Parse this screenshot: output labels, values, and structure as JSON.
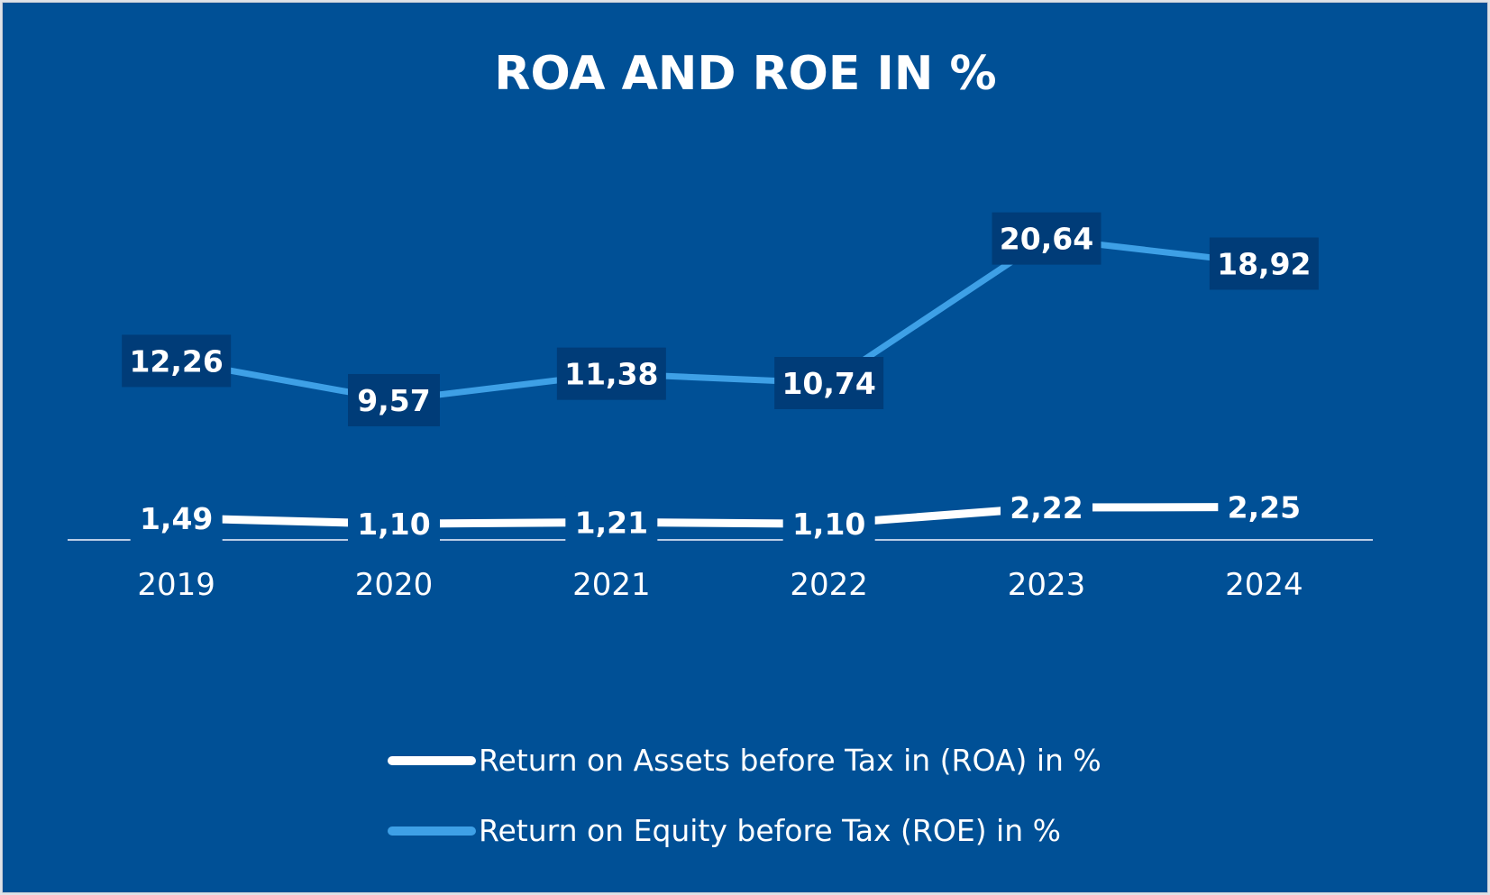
{
  "colors": {
    "background": "#005096",
    "axis": "#b9cde6",
    "roa_line": "#ffffff",
    "roe_line": "#3ea0e6",
    "label_box": "#003c78"
  },
  "chart_data": {
    "type": "line",
    "title": "ROA AND ROE IN %",
    "categories": [
      "2019",
      "2020",
      "2021",
      "2022",
      "2023",
      "2024"
    ],
    "series": [
      {
        "name": "Return on Assets before Tax in (ROA) in %",
        "values": [
          1.49,
          1.1,
          1.21,
          1.1,
          2.22,
          2.25
        ],
        "labels": [
          "1,49",
          "1,10",
          "1,21",
          "1,10",
          "2,22",
          "2,25"
        ]
      },
      {
        "name": "Return on Equity before Tax (ROE) in %",
        "values": [
          12.26,
          9.57,
          11.38,
          10.74,
          20.64,
          18.92
        ],
        "labels": [
          "12,26",
          "9,57",
          "11,38",
          "10,74",
          "20,64",
          "18,92"
        ]
      }
    ],
    "ylim": [
      0,
      23
    ],
    "grid": false,
    "legend": "bottom",
    "y_axis_visible": false
  }
}
